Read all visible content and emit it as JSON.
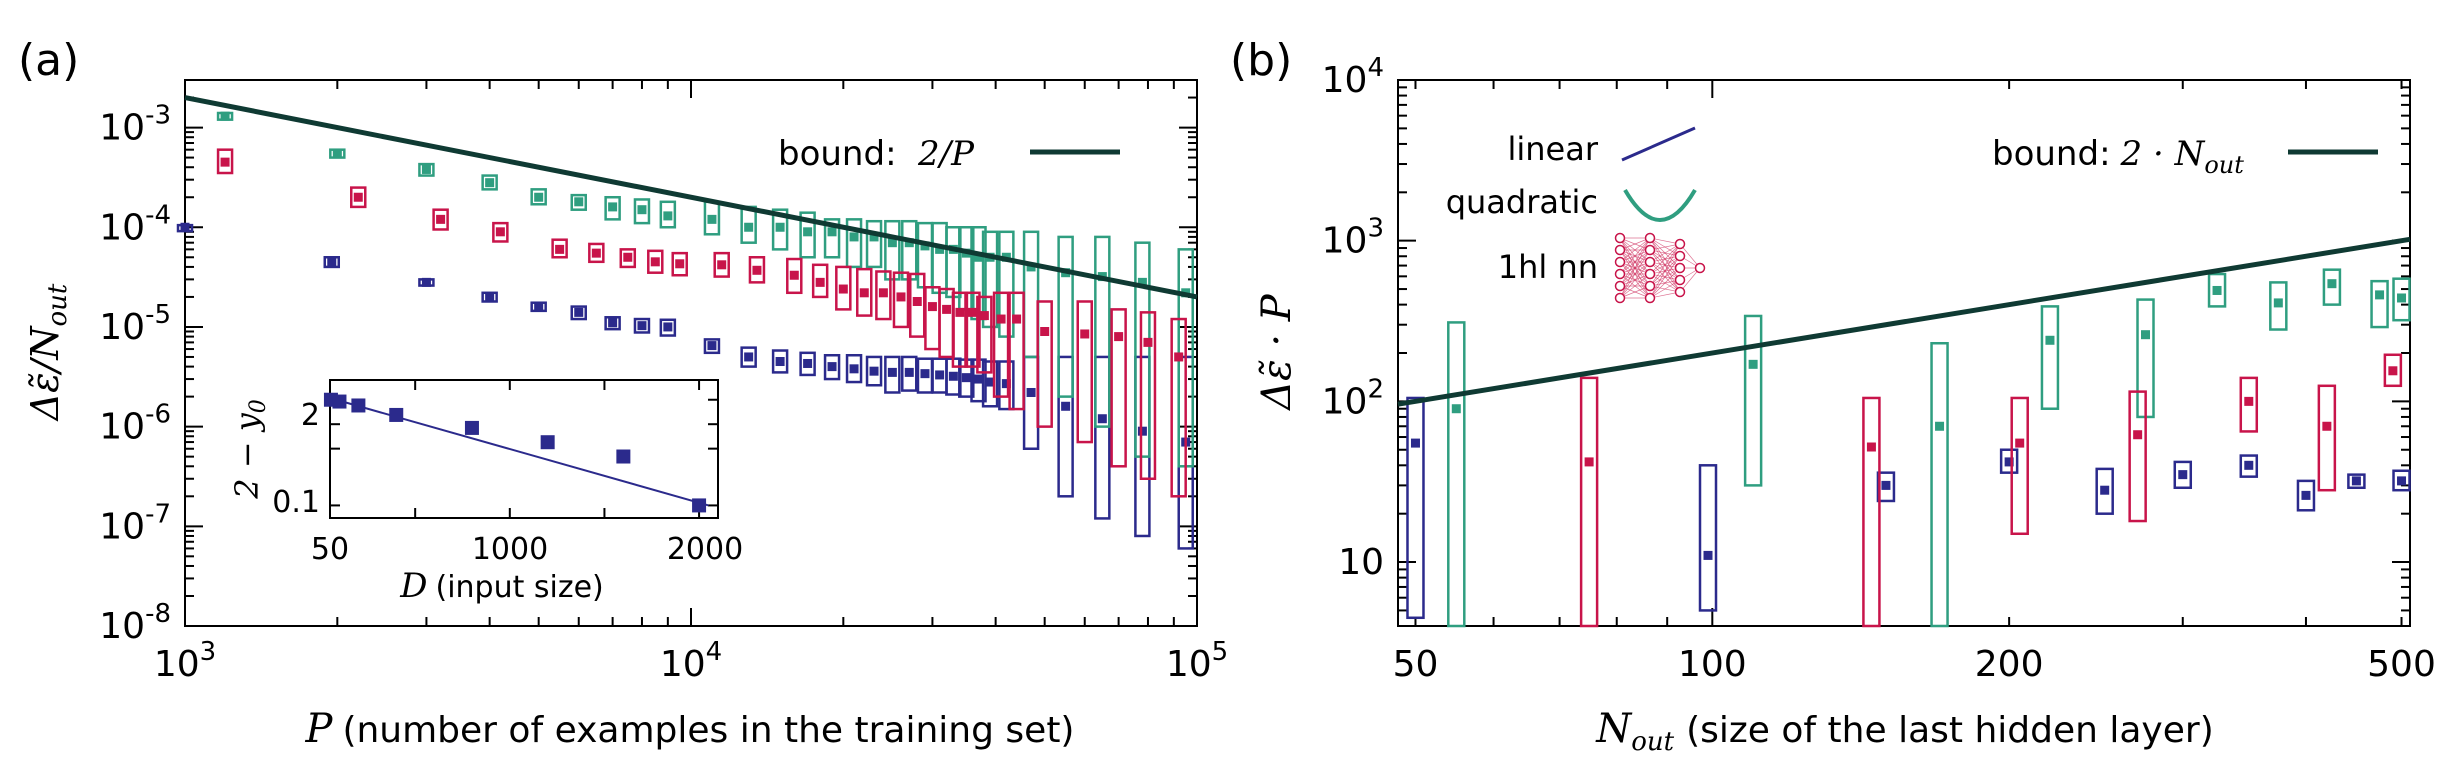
{
  "colors": {
    "linear": "#2b2a8c",
    "quadratic": "#2f9e80",
    "nn": "#c8144a",
    "bound": "#0f3a33"
  },
  "panel_a": {
    "tag": "(a)",
    "ylabel": "Δε̃/N",
    "ylabel_sub": "out",
    "xlabel_var": "P",
    "xlabel_text": "(number of examples in the training set)",
    "bound_label": "bound:",
    "bound_formula": "2/P"
  },
  "panel_b": {
    "tag": "(b)",
    "ylabel": "Δε̃ · P",
    "xlabel_var": "N",
    "xlabel_sub": "out",
    "xlabel_text": "(size of the last hidden layer)",
    "bound_label": "bound:",
    "bound_formula": "2 · N",
    "bound_sub": "out",
    "legend": {
      "linear": "linear",
      "quadratic": "quadratic",
      "nn": "1hl nn"
    }
  },
  "inset": {
    "ylabel": "2 − y",
    "ylabel_sub": "0",
    "xlabel_var": "D",
    "xlabel_text": "(input size)",
    "xticks": [
      "50",
      "1000",
      "2000"
    ],
    "yticks": [
      "2",
      "0.1"
    ]
  },
  "chart_data": [
    {
      "id": "panel_a",
      "type": "scatter",
      "xscale": "log",
      "yscale": "log",
      "xlim": [
        1000,
        100000
      ],
      "ylim": [
        1e-08,
        0.003
      ],
      "xticks": [
        {
          "v": 1000,
          "b": "10",
          "e": "3"
        },
        {
          "v": 10000,
          "b": "10",
          "e": "4"
        },
        {
          "v": 100000,
          "b": "10",
          "e": "5"
        }
      ],
      "yticks": [
        {
          "v": 0.001,
          "b": "10",
          "e": "-3"
        },
        {
          "v": 0.0001,
          "b": "10",
          "e": "-4"
        },
        {
          "v": 1e-05,
          "b": "10",
          "e": "-5"
        },
        {
          "v": 1e-06,
          "b": "10",
          "e": "-6"
        },
        {
          "v": 1e-07,
          "b": "10",
          "e": "-7"
        },
        {
          "v": 1e-08,
          "b": "10",
          "e": "-8"
        }
      ],
      "bound": {
        "x": [
          1000,
          100000
        ],
        "y": [
          0.002,
          2e-05
        ]
      },
      "series": [
        {
          "name": "linear",
          "points": [
            [
              1000,
              0.0001,
              9.5e-05,
              0.000105
            ],
            [
              1950,
              4.5e-05,
              4e-05,
              5e-05
            ],
            [
              3000,
              2.8e-05,
              2.6e-05,
              3e-05
            ],
            [
              4000,
              2e-05,
              1.8e-05,
              2.2e-05
            ],
            [
              5000,
              1.6e-05,
              1.45e-05,
              1.75e-05
            ],
            [
              6000,
              1.4e-05,
              1.2e-05,
              1.6e-05
            ],
            [
              7000,
              1.1e-05,
              9.5e-06,
              1.25e-05
            ],
            [
              8000,
              1.03e-05,
              8.8e-06,
              1.2e-05
            ],
            [
              9000,
              1e-05,
              8.2e-06,
              1.18e-05
            ],
            [
              11000,
              6.5e-06,
              5.5e-06,
              7.5e-06
            ],
            [
              13000,
              5e-06,
              4e-06,
              6.2e-06
            ],
            [
              15000,
              4.5e-06,
              3.5e-06,
              5.8e-06
            ],
            [
              17000,
              4.3e-06,
              3.3e-06,
              5.5e-06
            ],
            [
              19000,
              4e-06,
              3e-06,
              5.2e-06
            ],
            [
              21000,
              3.8e-06,
              2.8e-06,
              5.2e-06
            ],
            [
              23000,
              3.6e-06,
              2.6e-06,
              5e-06
            ],
            [
              25000,
              3.5e-06,
              2.2e-06,
              5e-06
            ],
            [
              27000,
              3.5e-06,
              2.3e-06,
              5e-06
            ],
            [
              29000,
              3.4e-06,
              2.2e-06,
              4.8e-06
            ],
            [
              31000,
              3.3e-06,
              2.2e-06,
              4.8e-06
            ],
            [
              33000,
              3.2e-06,
              2.1e-06,
              4.8e-06
            ],
            [
              35000,
              3.1e-06,
              2e-06,
              4.7e-06
            ],
            [
              37000,
              3e-06,
              1.8e-06,
              4.7e-06
            ],
            [
              39000,
              2.8e-06,
              1.6e-06,
              4.5e-06
            ],
            [
              42000,
              2.7e-06,
              1.5e-06,
              4.5e-06
            ],
            [
              47000,
              2.2e-06,
              6e-07,
              5e-06
            ],
            [
              55000,
              1.6e-06,
              2e-07,
              5e-06
            ],
            [
              65000,
              1.2e-06,
              1.2e-07,
              5e-06
            ],
            [
              78000,
              9e-07,
              8e-08,
              5e-06
            ],
            [
              95000,
              7e-07,
              6e-08,
              5e-06
            ]
          ]
        },
        {
          "name": "quadratic",
          "points": [
            [
              1200,
              0.0013,
              0.0012,
              0.0014
            ],
            [
              2000,
              0.00055,
              0.0005,
              0.0006
            ],
            [
              3000,
              0.00038,
              0.00033,
              0.00043
            ],
            [
              4000,
              0.00028,
              0.00024,
              0.00033
            ],
            [
              5000,
              0.0002,
              0.00017,
              0.00024
            ],
            [
              6000,
              0.00018,
              0.00015,
              0.00021
            ],
            [
              7000,
              0.00016,
              0.00012,
              0.0002
            ],
            [
              8000,
              0.00015,
              0.00011,
              0.00019
            ],
            [
              9000,
              0.00013,
              0.0001,
              0.00018
            ],
            [
              11000,
              0.00012,
              8.5e-05,
              0.00018
            ],
            [
              13000,
              0.0001,
              7e-05,
              0.00016
            ],
            [
              15000,
              0.0001,
              6e-05,
              0.00015
            ],
            [
              17000,
              9e-05,
              5e-05,
              0.00014
            ],
            [
              19000,
              9e-05,
              5e-05,
              0.00012
            ],
            [
              21000,
              8e-05,
              4e-05,
              0.00012
            ],
            [
              23000,
              8e-05,
              4e-05,
              0.000115
            ],
            [
              25000,
              7e-05,
              3e-05,
              0.000115
            ],
            [
              27000,
              7e-05,
              3e-05,
              0.000115
            ],
            [
              29000,
              6.5e-05,
              2.5e-05,
              0.00011
            ],
            [
              31000,
              6e-05,
              2.2e-05,
              0.00011
            ],
            [
              33000,
              6e-05,
              2e-05,
              0.0001
            ],
            [
              35000,
              5.5e-05,
              1.5e-05,
              0.0001
            ],
            [
              37000,
              5e-05,
              1.2e-05,
              0.0001
            ],
            [
              39000,
              5e-05,
              1e-05,
              9e-05
            ],
            [
              42000,
              5e-05,
              8e-06,
              9e-05
            ],
            [
              47000,
              4e-05,
              5e-06,
              9e-05
            ],
            [
              55000,
              3.5e-05,
              2e-06,
              8e-05
            ],
            [
              65000,
              3.2e-05,
              1e-06,
              8e-05
            ],
            [
              78000,
              2.8e-05,
              5e-07,
              7e-05
            ],
            [
              95000,
              2.2e-05,
              4e-07,
              6e-05
            ]
          ]
        },
        {
          "name": "nn",
          "points": [
            [
              1200,
              0.00045,
              0.00035,
              0.0006
            ],
            [
              2200,
              0.0002,
              0.00016,
              0.00025
            ],
            [
              3200,
              0.00012,
              9.5e-05,
              0.00015
            ],
            [
              4200,
              9e-05,
              7.2e-05,
              0.00011
            ],
            [
              5500,
              6e-05,
              5e-05,
              7.5e-05
            ],
            [
              6500,
              5.5e-05,
              4.5e-05,
              6.8e-05
            ],
            [
              7500,
              5e-05,
              4e-05,
              6e-05
            ],
            [
              8500,
              4.5e-05,
              3.5e-05,
              5.8e-05
            ],
            [
              9500,
              4.3e-05,
              3.3e-05,
              5.5e-05
            ],
            [
              11500,
              4.2e-05,
              3.2e-05,
              5.5e-05
            ],
            [
              13500,
              3.7e-05,
              2.8e-05,
              5e-05
            ],
            [
              16000,
              3.3e-05,
              2.2e-05,
              4.8e-05
            ],
            [
              18000,
              2.8e-05,
              2e-05,
              4.2e-05
            ],
            [
              20000,
              2.4e-05,
              1.5e-05,
              4e-05
            ],
            [
              22000,
              2.2e-05,
              1.3e-05,
              3.8e-05
            ],
            [
              24000,
              2.2e-05,
              1.2e-05,
              3.6e-05
            ],
            [
              26000,
              2e-05,
              1e-05,
              3.5e-05
            ],
            [
              28000,
              1.8e-05,
              8e-06,
              3.4e-05
            ],
            [
              30000,
              1.6e-05,
              6e-06,
              2.5e-05
            ],
            [
              32000,
              1.5e-05,
              5e-06,
              2.4e-05
            ],
            [
              34000,
              1.4e-05,
              4e-06,
              2.2e-05
            ],
            [
              36000,
              1.4e-05,
              4e-06,
              2.2e-05
            ],
            [
              38000,
              1.3e-05,
              3.5e-06,
              2e-05
            ],
            [
              41000,
              1.2e-05,
              2e-06,
              2.2e-05
            ],
            [
              44000,
              1.2e-05,
              1.5e-06,
              2.2e-05
            ],
            [
              50000,
              9e-06,
              1e-06,
              1.8e-05
            ],
            [
              60000,
              8.5e-06,
              7e-07,
              1.8e-05
            ],
            [
              70000,
              8e-06,
              4e-07,
              1.5e-05
            ],
            [
              80000,
              7e-06,
              3e-07,
              1.4e-05
            ],
            [
              92000,
              5e-06,
              2e-07,
              1.2e-05
            ]
          ]
        }
      ]
    },
    {
      "id": "panel_b",
      "type": "scatter",
      "xscale": "log",
      "yscale": "log",
      "xlim": [
        48,
        510
      ],
      "ylim": [
        4,
        10000
      ],
      "xticks": [
        {
          "v": 50,
          "t": "50"
        },
        {
          "v": 100,
          "t": "100"
        },
        {
          "v": 200,
          "t": "200"
        },
        {
          "v": 500,
          "t": "500"
        }
      ],
      "yticks": [
        {
          "v": 10,
          "t": "10"
        },
        {
          "v": 100,
          "b": "10",
          "e": "2"
        },
        {
          "v": 1000,
          "b": "10",
          "e": "3"
        },
        {
          "v": 10000,
          "b": "10",
          "e": "4"
        }
      ],
      "bound": {
        "x": [
          48,
          510
        ],
        "y": [
          96,
          1020
        ]
      },
      "series": [
        {
          "name": "linear",
          "points": [
            [
              50,
              55,
              4.5,
              105
            ],
            [
              99,
              11,
              5,
              40
            ],
            [
              150,
              30,
              24,
              36
            ],
            [
              200,
              42,
              36,
              50
            ],
            [
              250,
              28,
              20,
              38
            ],
            [
              300,
              35,
              29,
              42
            ],
            [
              350,
              40,
              34,
              46
            ],
            [
              400,
              26,
              21,
              32
            ],
            [
              450,
              32,
              29,
              35
            ],
            [
              500,
              32,
              28,
              37
            ]
          ]
        },
        {
          "name": "quadratic",
          "points": [
            [
              55,
              90,
              4,
              310
            ],
            [
              110,
              170,
              30,
              340
            ],
            [
              170,
              70,
              4,
              230
            ],
            [
              220,
              240,
              90,
              390
            ],
            [
              275,
              260,
              80,
              430
            ],
            [
              325,
              490,
              390,
              620
            ],
            [
              375,
              410,
              280,
              550
            ],
            [
              425,
              540,
              400,
              660
            ],
            [
              475,
              460,
              290,
              560
            ],
            [
              500,
              440,
              320,
              580
            ]
          ]
        },
        {
          "name": "nn",
          "points": [
            [
              75,
              42,
              4,
              140
            ],
            [
              145,
              52,
              4,
              105
            ],
            [
              205,
              55,
              15,
              105
            ],
            [
              270,
              62,
              18,
              115
            ],
            [
              350,
              100,
              65,
              140
            ],
            [
              420,
              70,
              28,
              125
            ],
            [
              490,
              155,
              125,
              195
            ]
          ]
        }
      ]
    },
    {
      "id": "inset",
      "type": "scatter",
      "xscale": "linear",
      "yscale": "log",
      "xlim": [
        50,
        2100
      ],
      "ylim": [
        0.07,
        3.5
      ],
      "series": [
        {
          "name": "linear",
          "points": [
            [
              55,
              2.0
            ],
            [
              100,
              1.9
            ],
            [
              200,
              1.7
            ],
            [
              400,
              1.3
            ],
            [
              800,
              0.9
            ],
            [
              1200,
              0.6
            ],
            [
              1600,
              0.4
            ],
            [
              2000,
              0.1
            ]
          ]
        }
      ],
      "fit": {
        "x": [
          50,
          2050
        ],
        "y": [
          2.1,
          0.1
        ]
      }
    }
  ]
}
